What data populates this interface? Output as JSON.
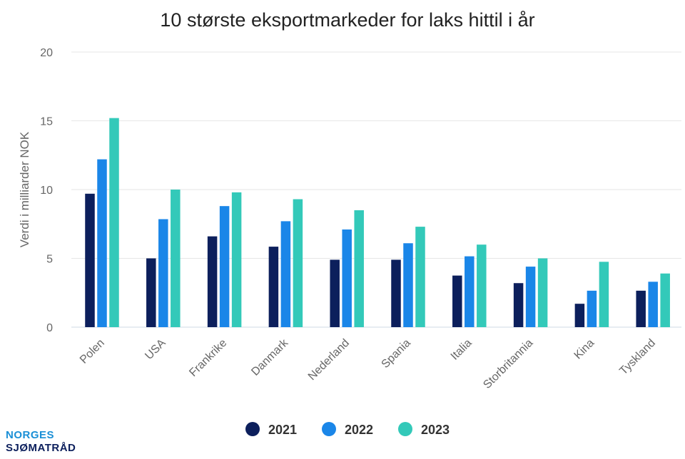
{
  "chart_data": {
    "type": "bar",
    "title": "10 største eksportmarkeder for laks hittil i år",
    "xlabel": "",
    "ylabel": "Verdi i milliarder NOK",
    "ylim": [
      0,
      20
    ],
    "yticks": [
      0,
      5,
      10,
      15,
      20
    ],
    "grid": true,
    "legend_position": "bottom",
    "categories": [
      "Polen",
      "USA",
      "Frankrike",
      "Danmark",
      "Nederland",
      "Spania",
      "Italia",
      "Storbritannia",
      "Kina",
      "Tyskland"
    ],
    "series": [
      {
        "name": "2021",
        "color": "#0c1f5c",
        "values": [
          9.7,
          5.0,
          6.6,
          5.85,
          4.9,
          4.9,
          3.75,
          3.2,
          1.7,
          2.65
        ]
      },
      {
        "name": "2022",
        "color": "#1a86e8",
        "values": [
          12.2,
          7.85,
          8.8,
          7.7,
          7.1,
          6.1,
          5.15,
          4.4,
          2.65,
          3.3
        ]
      },
      {
        "name": "2023",
        "color": "#33c9b9",
        "values": [
          15.2,
          10.0,
          9.8,
          9.3,
          8.5,
          7.3,
          6.0,
          5.0,
          4.75,
          3.9
        ]
      }
    ]
  },
  "logo": {
    "line1": "NORGES",
    "line2": "SJØMATRÅD"
  }
}
